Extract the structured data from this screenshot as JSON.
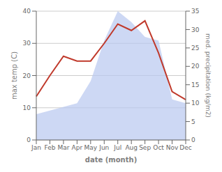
{
  "chart_data": {
    "type": "line",
    "categories": [
      "Jan",
      "Feb",
      "Mar",
      "Apr",
      "May",
      "Jun",
      "Jul",
      "Aug",
      "Sep",
      "Oct",
      "Nov",
      "Dec"
    ],
    "series": [
      {
        "type": "area",
        "color": "#b8c8f0",
        "axis": "y2",
        "values": [
          7,
          8,
          9,
          10,
          16,
          27,
          35,
          32,
          28,
          27,
          11,
          10
        ]
      },
      {
        "type": "line",
        "color": "#c0392b",
        "values": [
          13.5,
          20,
          26,
          24.5,
          24.5,
          30,
          36,
          34,
          37,
          27,
          15,
          12.5
        ]
      }
    ],
    "xlabel": "date (month)",
    "ylabel": "max temp (C)",
    "y2label": "med. precipitation (kg/m2)",
    "ylim": [
      0,
      40
    ],
    "yticks": [
      0,
      10,
      20,
      30,
      40
    ],
    "y2lim": [
      0,
      35
    ],
    "y2ticks": [
      0,
      5,
      10,
      15,
      20,
      25,
      30,
      35
    ],
    "grid": true
  }
}
